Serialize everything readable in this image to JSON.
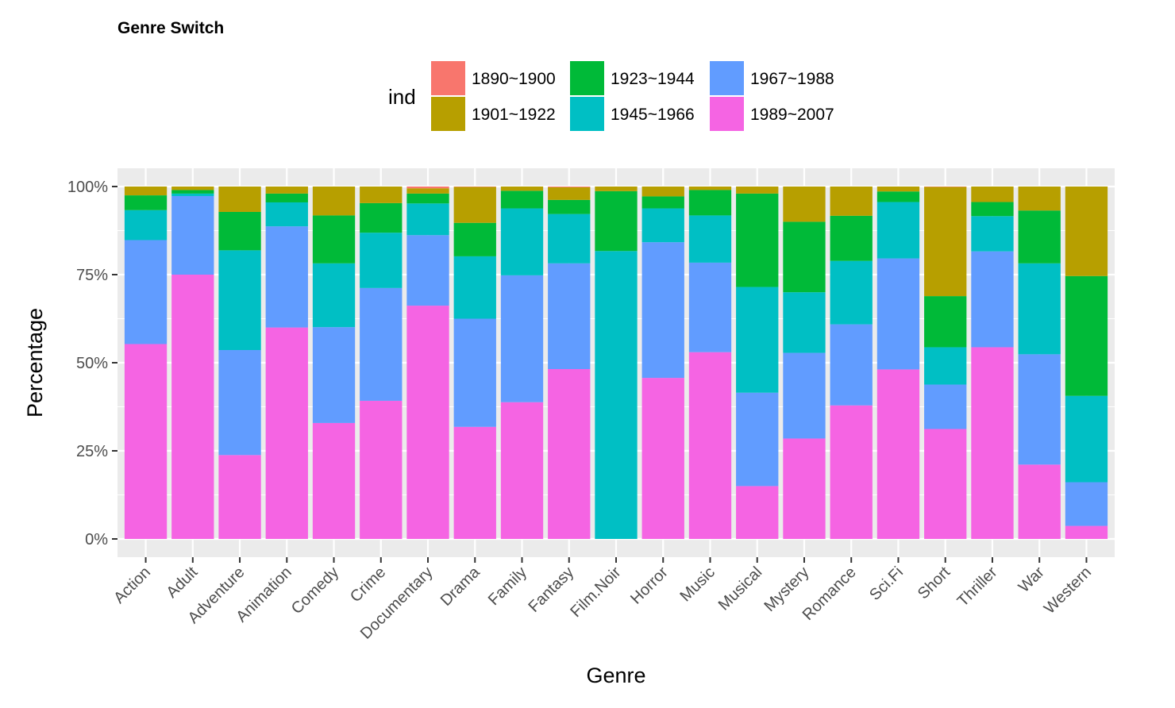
{
  "chart_data": {
    "type": "bar",
    "stacked": true,
    "title": "Genre Switch",
    "xlabel": "Genre",
    "ylabel": "Percentage",
    "ylim": [
      0,
      1
    ],
    "y_ticks": [
      "0%",
      "25%",
      "50%",
      "75%",
      "100%"
    ],
    "legend": {
      "title": "ind",
      "position": "top",
      "items": [
        "1890~1900",
        "1901~1922",
        "1923~1944",
        "1945~1966",
        "1967~1988",
        "1989~2007"
      ]
    },
    "colors": {
      "1890~1900": "#F8766D",
      "1901~1922": "#B79F00",
      "1923~1944": "#00BA38",
      "1945~1966": "#00BFC4",
      "1967~1988": "#619CFF",
      "1989~2007": "#F564E3"
    },
    "grid": true,
    "panel_background": "#EBEBEB",
    "categories": [
      "Action",
      "Adult",
      "Adventure",
      "Animation",
      "Comedy",
      "Crime",
      "Documentary",
      "Drama",
      "Family",
      "Fantasy",
      "Film.Noir",
      "Horror",
      "Music",
      "Musical",
      "Mystery",
      "Romance",
      "Sci.Fi",
      "Short",
      "Thriller",
      "War",
      "Western"
    ],
    "series": [
      {
        "name": "1890~1900",
        "values": [
          0,
          0,
          0,
          0,
          0,
          0,
          0.005,
          0.001,
          0,
          0.002,
          0,
          0,
          0,
          0,
          0,
          0,
          0,
          0.001,
          0,
          0,
          0
        ]
      },
      {
        "name": "1901~1922",
        "values": [
          0.025,
          0.01,
          0.072,
          0.02,
          0.082,
          0.047,
          0.015,
          0.102,
          0.012,
          0.036,
          0.013,
          0.028,
          0.01,
          0.02,
          0.1,
          0.083,
          0.014,
          0.31,
          0.044,
          0.068,
          0.254
        ]
      },
      {
        "name": "1923~1944",
        "values": [
          0.042,
          0.01,
          0.109,
          0.025,
          0.136,
          0.084,
          0.028,
          0.095,
          0.05,
          0.04,
          0.17,
          0.034,
          0.072,
          0.265,
          0.2,
          0.128,
          0.03,
          0.145,
          0.04,
          0.15,
          0.34
        ]
      },
      {
        "name": "1945~1966",
        "values": [
          0.085,
          0.007,
          0.283,
          0.068,
          0.181,
          0.157,
          0.09,
          0.177,
          0.19,
          0.14,
          0.817,
          0.096,
          0.134,
          0.3,
          0.172,
          0.18,
          0.16,
          0.106,
          0.1,
          0.258,
          0.245
        ]
      },
      {
        "name": "1967~1988",
        "values": [
          0.295,
          0.223,
          0.298,
          0.287,
          0.272,
          0.32,
          0.2,
          0.307,
          0.36,
          0.3,
          0,
          0.385,
          0.254,
          0.265,
          0.243,
          0.23,
          0.315,
          0.126,
          0.272,
          0.313,
          0.124
        ]
      },
      {
        "name": "1989~2007",
        "values": [
          0.553,
          0.75,
          0.238,
          0.6,
          0.329,
          0.392,
          0.662,
          0.318,
          0.388,
          0.482,
          0,
          0.457,
          0.53,
          0.15,
          0.285,
          0.379,
          0.481,
          0.312,
          0.544,
          0.211,
          0.037
        ]
      }
    ]
  }
}
